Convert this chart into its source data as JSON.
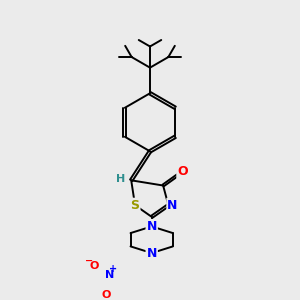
{
  "bg_color": "#ebebeb",
  "bond_color": "#000000",
  "bond_width": 1.4,
  "atom_colors": {
    "S": "#999900",
    "N": "#0000ff",
    "O": "#ff0000",
    "H": "#2f8f8f",
    "C": "#000000"
  }
}
